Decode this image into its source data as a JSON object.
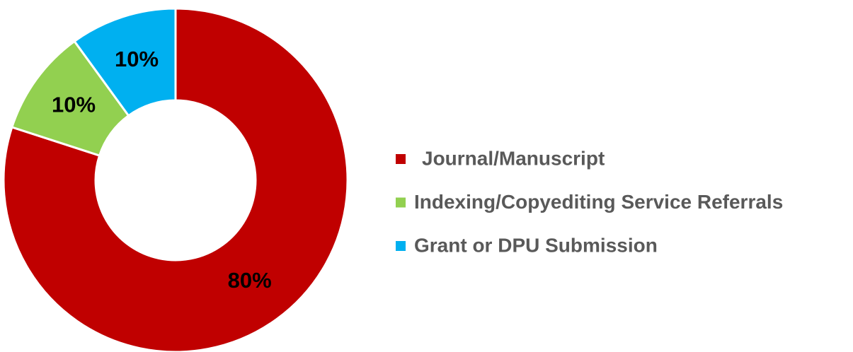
{
  "chart_data": {
    "type": "donut",
    "categories": [
      "Journal/Manuscript",
      "Indexing/Copyediting Service Referrals",
      "Grant or DPU Submission"
    ],
    "values": [
      80,
      10,
      10
    ],
    "value_labels": [
      "80%",
      "10%",
      "10%"
    ],
    "colors": [
      "#c00000",
      "#92d050",
      "#00b0f0"
    ],
    "legend": "right"
  }
}
